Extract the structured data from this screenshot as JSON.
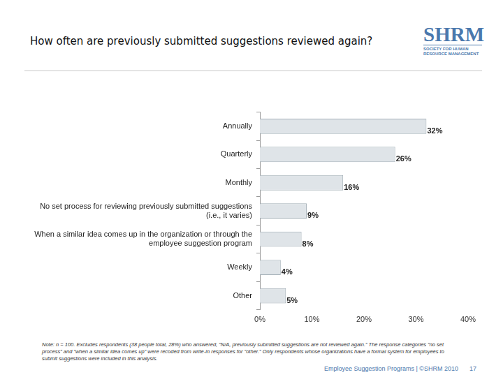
{
  "chart_data": {
    "type": "bar",
    "orientation": "horizontal",
    "title": "How often are previously submitted suggestions reviewed again?",
    "categories": [
      "Annually",
      "Quarterly",
      "Monthly",
      "No set process for reviewing previously submitted suggestions (i.e., it varies)",
      "When a similar idea comes up in the organization or through the employee suggestion program",
      "Weekly",
      "Other"
    ],
    "values": [
      32,
      26,
      16,
      9,
      8,
      4,
      5
    ],
    "value_labels": [
      "32%",
      "26%",
      "16%",
      "9%",
      "8%",
      "4%",
      "5%"
    ],
    "data_labels": true,
    "color": "#dfe4e8",
    "xlim": [
      0,
      40
    ],
    "xticks": [
      {
        "value": 0,
        "label": "0%"
      },
      {
        "value": 10,
        "label": "10%"
      },
      {
        "value": 20,
        "label": "20%"
      },
      {
        "value": 30,
        "label": "30%"
      },
      {
        "value": 40,
        "label": "40%"
      }
    ],
    "grid": false
  },
  "page": {
    "logo": {
      "text": "SHRM",
      "subtitle": "SOCIETY FOR HUMAN RESOURCE MANAGEMENT"
    },
    "note": "Note: n = 100. Excludes respondents (38 people total, 28%) who answered, “N/A, previously submitted suggestions are not reviewed again.” The response categories “no set process” and “when a similar idea comes up” were recoded from write-in responses for “other.” Only respondents whose organizations have a formal system for employees to submit suggestions were included in this analysis.",
    "footer": "Employee Suggestion Programs | ©SHRM 2010",
    "page_number": "17"
  }
}
